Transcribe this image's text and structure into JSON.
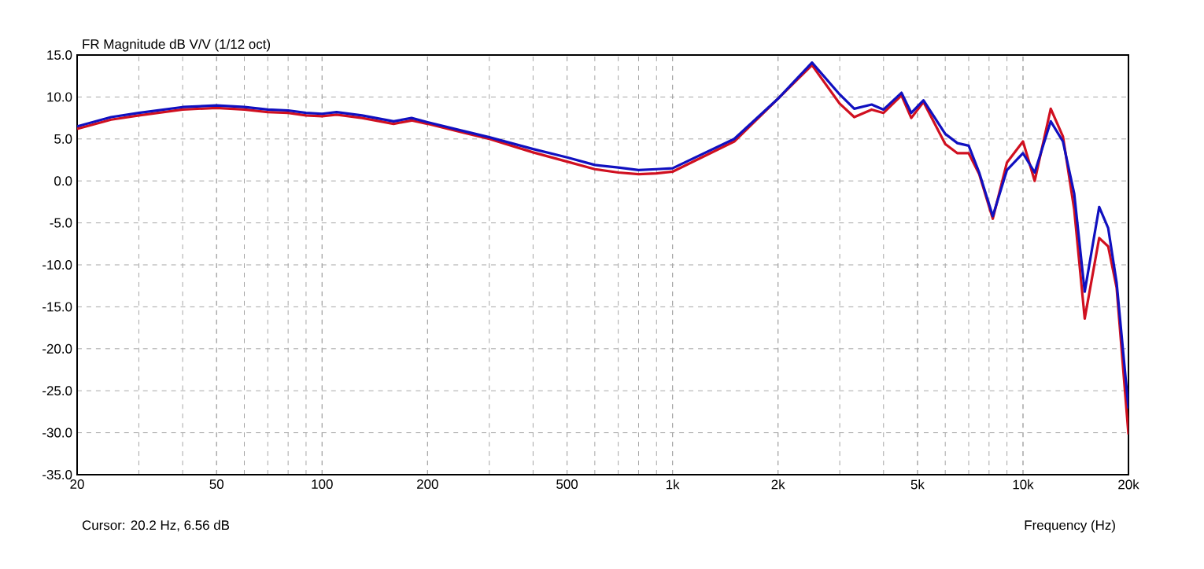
{
  "chart_data": {
    "type": "line",
    "title": "FR Magnitude dB V/V (1/12 oct)",
    "xlabel": "Frequency (Hz)",
    "annotations": [
      "Cursor: 20.2 Hz, 6.56 dB"
    ],
    "log": "x",
    "grid": true,
    "line_style": "solid",
    "marker": "none",
    "xlim": [
      20,
      20000
    ],
    "ylim": [
      -35,
      15
    ],
    "xticks": [
      {
        "value": 20,
        "label": "20"
      },
      {
        "value": 50,
        "label": "50"
      },
      {
        "value": 100,
        "label": "100"
      },
      {
        "value": 200,
        "label": "200"
      },
      {
        "value": 500,
        "label": "500"
      },
      {
        "value": 1000,
        "label": "1k"
      },
      {
        "value": 2000,
        "label": "2k"
      },
      {
        "value": 5000,
        "label": "5k"
      },
      {
        "value": 10000,
        "label": "10k"
      },
      {
        "value": 20000,
        "label": "20k"
      }
    ],
    "yticks": [
      {
        "value": 15,
        "label": "15.0"
      },
      {
        "value": 10,
        "label": "10.0"
      },
      {
        "value": 5,
        "label": "5.0"
      },
      {
        "value": 0,
        "label": "0.0"
      },
      {
        "value": -5,
        "label": "-5.0"
      },
      {
        "value": -10,
        "label": "-10.0"
      },
      {
        "value": -15,
        "label": "-15.0"
      },
      {
        "value": -20,
        "label": "-20.0"
      },
      {
        "value": -25,
        "label": "-25.0"
      },
      {
        "value": -30,
        "label": "-30.0"
      },
      {
        "value": -35,
        "label": "-35.0"
      }
    ],
    "series": [
      {
        "color": "#d01020",
        "x": [
          20,
          25,
          30,
          40,
          50,
          60,
          70,
          80,
          90,
          100,
          110,
          130,
          160,
          180,
          200,
          250,
          300,
          400,
          500,
          600,
          700,
          800,
          900,
          1000,
          1500,
          2000,
          2500,
          3000,
          3300,
          3700,
          4000,
          4500,
          4800,
          5200,
          6000,
          6500,
          7000,
          7500,
          8200,
          9000,
          10000,
          10800,
          12000,
          13000,
          14000,
          15000,
          16500,
          17500,
          18500,
          20000
        ],
        "values": [
          6.2,
          7.3,
          7.8,
          8.5,
          8.7,
          8.5,
          8.2,
          8.1,
          7.8,
          7.7,
          7.9,
          7.5,
          6.8,
          7.2,
          6.8,
          5.8,
          5.0,
          3.4,
          2.3,
          1.4,
          1.0,
          0.8,
          0.9,
          1.1,
          4.7,
          9.8,
          13.8,
          9.2,
          7.6,
          8.5,
          8.1,
          10.2,
          7.5,
          9.4,
          4.4,
          3.3,
          3.3,
          0.8,
          -4.5,
          2.2,
          4.7,
          0.0,
          8.6,
          5.3,
          -3.4,
          -16.4,
          -6.8,
          -7.8,
          -12.7,
          -30.2
        ]
      },
      {
        "color": "#1010c0",
        "x": [
          20,
          25,
          30,
          40,
          50,
          60,
          70,
          80,
          90,
          100,
          110,
          130,
          160,
          180,
          200,
          250,
          300,
          400,
          500,
          600,
          700,
          800,
          900,
          1000,
          1500,
          2000,
          2500,
          3000,
          3300,
          3700,
          4000,
          4500,
          4800,
          5200,
          6000,
          6500,
          7000,
          7500,
          8200,
          9000,
          10000,
          10800,
          12000,
          13000,
          14000,
          15000,
          16500,
          17500,
          18500,
          20000
        ],
        "values": [
          6.5,
          7.6,
          8.1,
          8.8,
          9.0,
          8.8,
          8.5,
          8.4,
          8.1,
          8.0,
          8.2,
          7.8,
          7.1,
          7.5,
          7.0,
          6.0,
          5.2,
          3.8,
          2.8,
          1.9,
          1.6,
          1.3,
          1.4,
          1.5,
          5.0,
          9.8,
          14.1,
          10.3,
          8.6,
          9.1,
          8.5,
          10.5,
          8.1,
          9.6,
          5.6,
          4.5,
          4.2,
          1.0,
          -4.2,
          1.3,
          3.3,
          1.0,
          7.1,
          4.7,
          -1.5,
          -13.2,
          -3.1,
          -5.6,
          -12.1,
          -27.1
        ]
      }
    ]
  }
}
